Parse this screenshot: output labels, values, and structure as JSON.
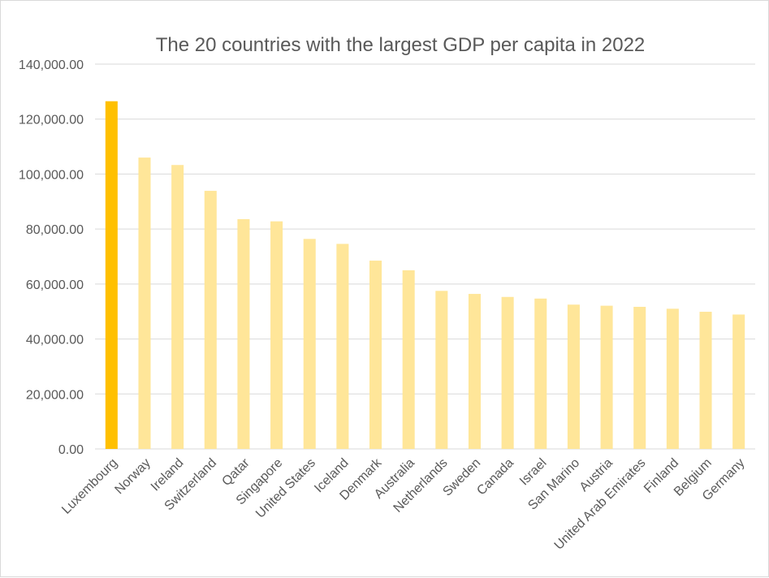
{
  "chart_data": {
    "type": "bar",
    "title": "The 20 countries with the largest GDP per capita in 2022",
    "xlabel": "",
    "ylabel": "",
    "ylim": [
      0,
      140000
    ],
    "yticks": [
      0,
      20000,
      40000,
      60000,
      80000,
      100000,
      120000,
      140000
    ],
    "ytick_labels": [
      "0.00",
      "20,000.00",
      "40,000.00",
      "60,000.00",
      "80,000.00",
      "100,000.00",
      "120,000.00",
      "140,000.00"
    ],
    "grid": true,
    "categories": [
      "Luxembourg",
      "Norway",
      "Ireland",
      "Switzerland",
      "Qatar",
      "Singapore",
      "United States",
      "Iceland",
      "Denmark",
      "Australia",
      "Netherlands",
      "Sweden",
      "Canada",
      "Israel",
      "San Marino",
      "Austria",
      "United Arab Emirates",
      "Finland",
      "Belgium",
      "Germany"
    ],
    "values": [
      126500,
      106000,
      103300,
      93900,
      83600,
      82800,
      76400,
      74600,
      68500,
      65000,
      57500,
      56400,
      55300,
      54700,
      52500,
      52100,
      51700,
      51000,
      49900,
      48900
    ],
    "colors": {
      "highlight": "#ffc000",
      "bar": "#ffe699"
    },
    "highlight_index": 0
  }
}
